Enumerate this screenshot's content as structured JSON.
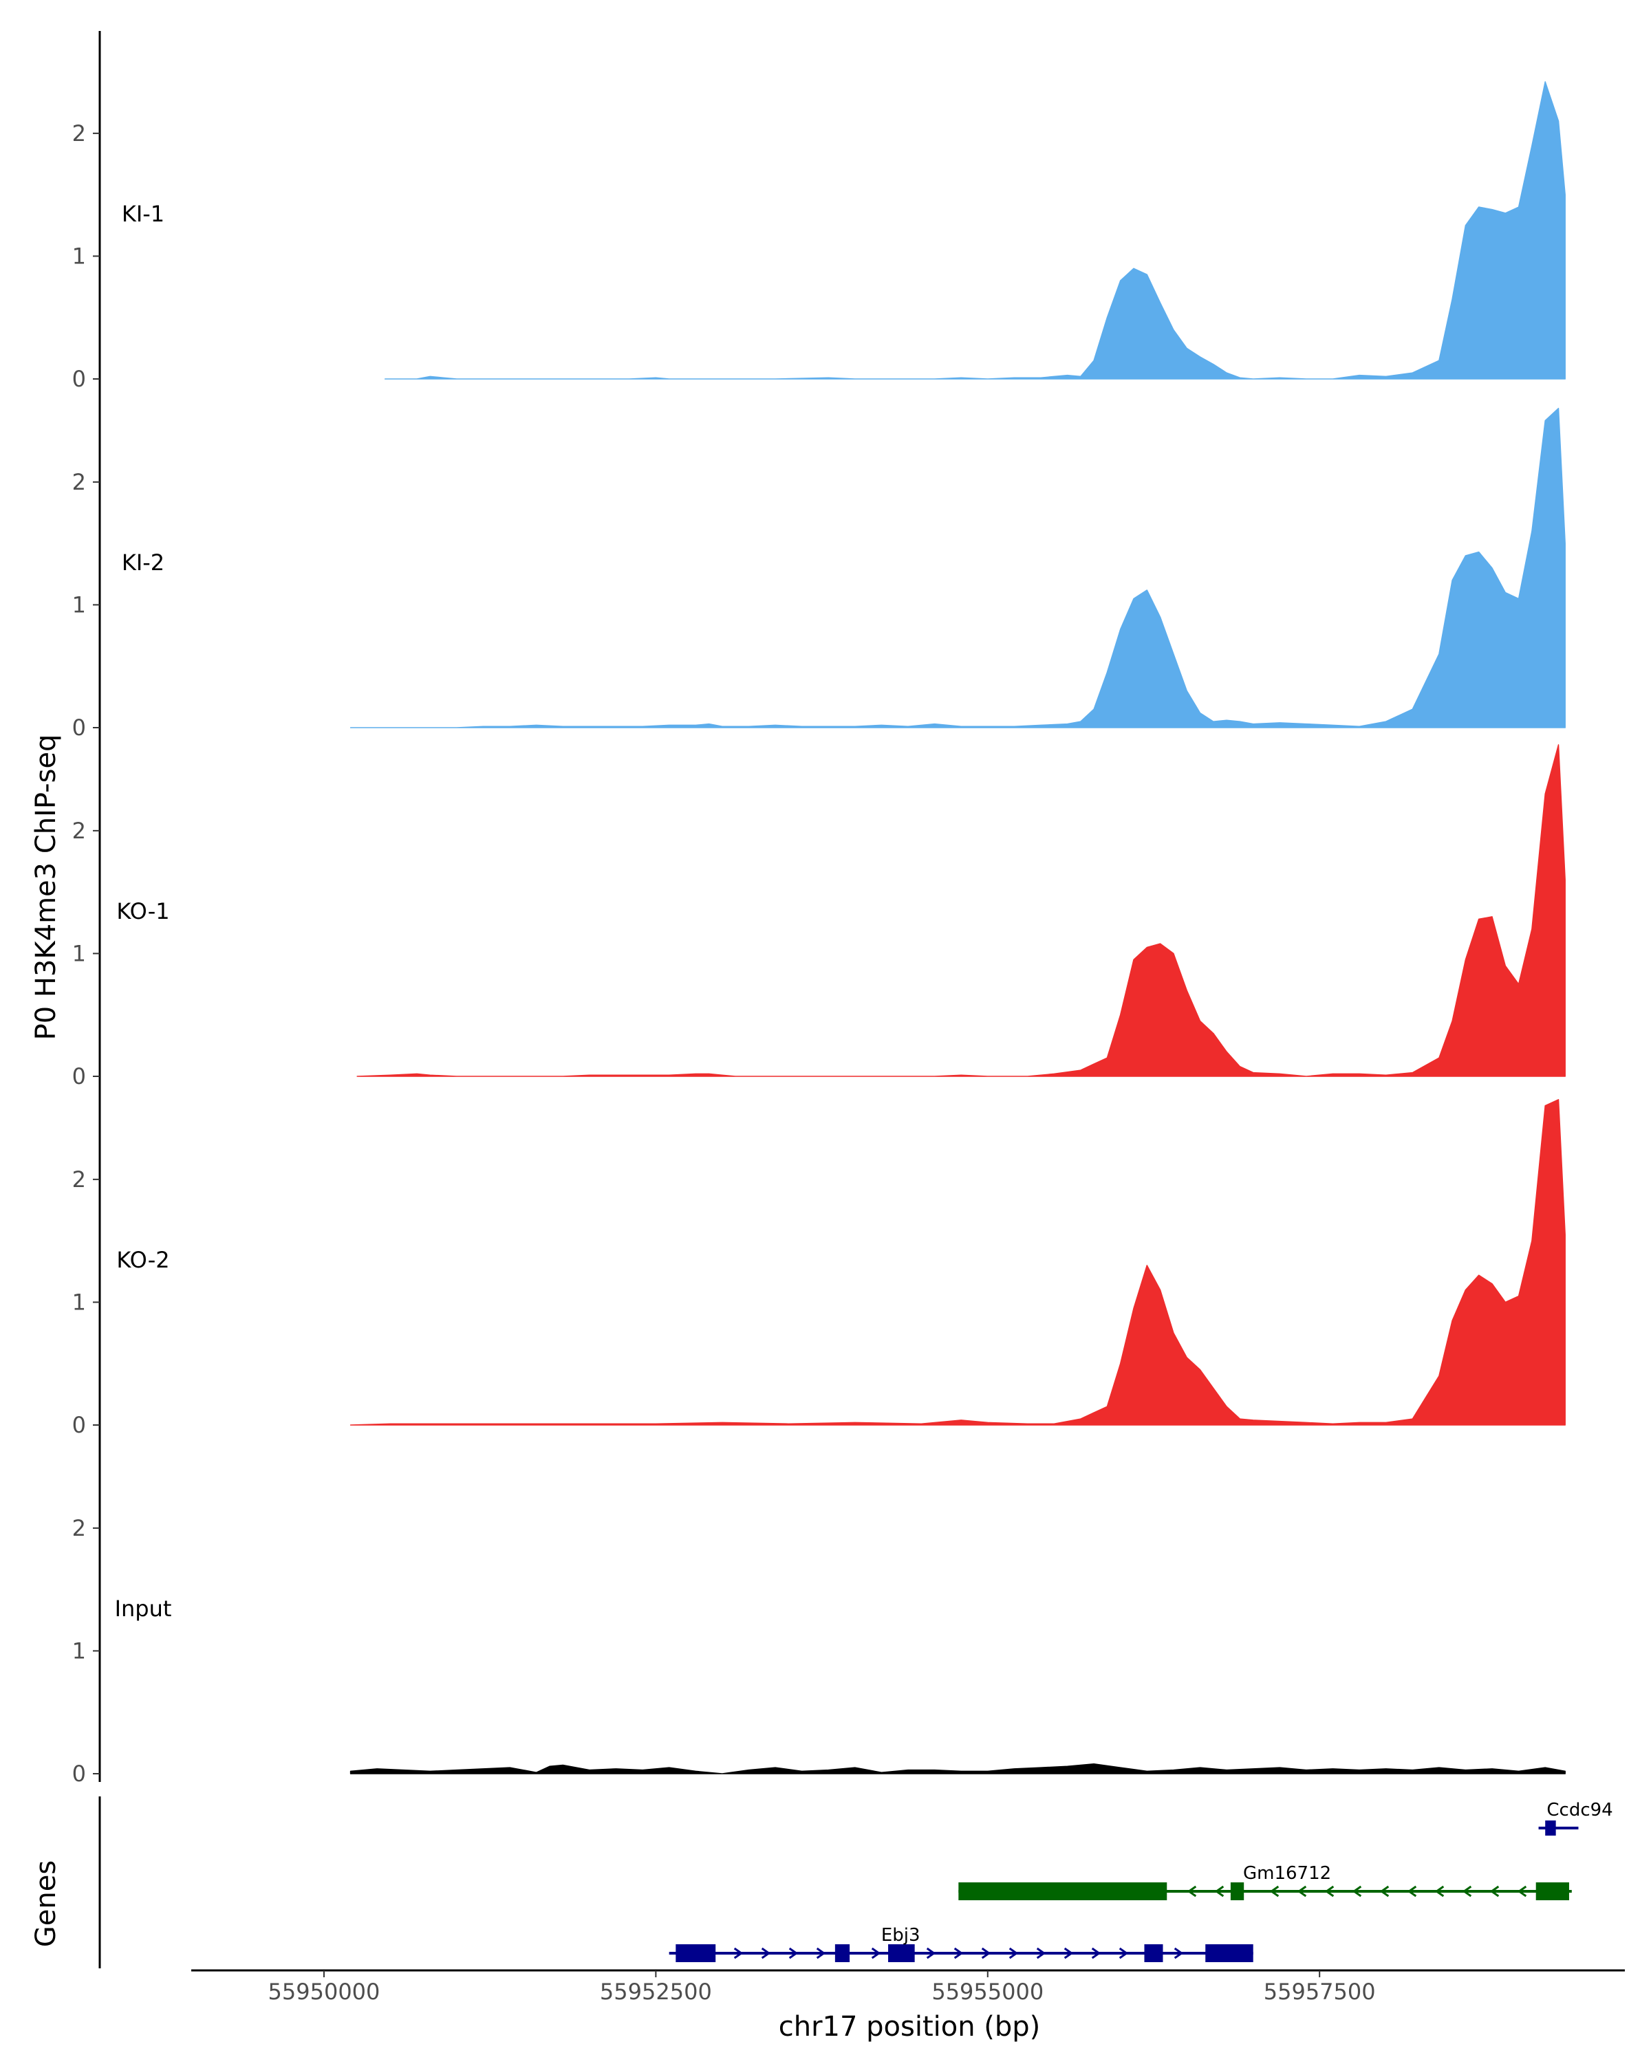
{
  "chart_data": {
    "type": "area",
    "title": "",
    "ylabel": "P0 H3K4me3 ChIP-seq",
    "xlabel": "chr17 position (bp)",
    "xlim": [
      55949000,
      55959800
    ],
    "ylim": [
      0,
      2.8
    ],
    "x_ticks": [
      {
        "value": 55950000,
        "label": "55950000"
      },
      {
        "value": 55952500,
        "label": "55952500"
      },
      {
        "value": 55955000,
        "label": "55955000"
      },
      {
        "value": 55957500,
        "label": "55957500"
      }
    ],
    "y_ticks": [
      {
        "value": 0,
        "label": "0"
      },
      {
        "value": 1,
        "label": "1"
      },
      {
        "value": 2,
        "label": "2"
      }
    ],
    "series": [
      {
        "name": "KI-1",
        "color": "#5DADEC",
        "x": [
          55950460,
          55950700,
          55950800,
          55950900,
          55951000,
          55951200,
          55951700,
          55952200,
          55952300,
          55952500,
          55952600,
          55952700,
          55952800,
          55952900,
          55953000,
          55953200,
          55953400,
          55953800,
          55954000,
          55954200,
          55954400,
          55954600,
          55954800,
          55955000,
          55955200,
          55955400,
          55955500,
          55955600,
          55955700,
          55955800,
          55955900,
          55956000,
          55956100,
          55956200,
          55956300,
          55956400,
          55956500,
          55956600,
          55956700,
          55956800,
          55956900,
          55957000,
          55957200,
          55957400,
          55957600,
          55957800,
          55958000,
          55958200,
          55958400,
          55958500,
          55958600,
          55958700,
          55958800,
          55958900,
          55959000,
          55959100,
          55959200,
          55959300,
          55959350
        ],
        "y": [
          0,
          0,
          0.02,
          0.01,
          0,
          0,
          0,
          0,
          0,
          0.01,
          0,
          0,
          0,
          0,
          0,
          0,
          0,
          0.01,
          0,
          0,
          0,
          0,
          0.01,
          0,
          0.01,
          0.01,
          0.02,
          0.03,
          0.02,
          0.15,
          0.5,
          0.8,
          0.9,
          0.85,
          0.62,
          0.4,
          0.25,
          0.18,
          0.12,
          0.05,
          0.01,
          0,
          0.01,
          0,
          0,
          0.03,
          0.02,
          0.05,
          0.15,
          0.65,
          1.25,
          1.4,
          1.38,
          1.35,
          1.4,
          1.9,
          2.42,
          2.1,
          1.5
        ]
      },
      {
        "name": "KI-2",
        "color": "#5DADEC",
        "x": [
          55950200,
          55950500,
          55950800,
          55951000,
          55951200,
          55951400,
          55951600,
          55951800,
          55952000,
          55952200,
          55952400,
          55952600,
          55952800,
          55952900,
          55953000,
          55953200,
          55953400,
          55953600,
          55953800,
          55954000,
          55954200,
          55954400,
          55954600,
          55954800,
          55955000,
          55955200,
          55955400,
          55955600,
          55955700,
          55955800,
          55955900,
          55956000,
          55956100,
          55956200,
          55956300,
          55956400,
          55956500,
          55956600,
          55956700,
          55956800,
          55956900,
          55957000,
          55957200,
          55957400,
          55957600,
          55957800,
          55958000,
          55958200,
          55958400,
          55958500,
          55958600,
          55958700,
          55958800,
          55958900,
          55959000,
          55959100,
          55959200,
          55959300,
          55959350
        ],
        "y": [
          0,
          0,
          0,
          0,
          0.01,
          0.01,
          0.02,
          0.01,
          0.01,
          0.01,
          0.01,
          0.02,
          0.02,
          0.03,
          0.01,
          0.01,
          0.02,
          0.01,
          0.01,
          0.01,
          0.02,
          0.01,
          0.03,
          0.01,
          0.01,
          0.01,
          0.02,
          0.03,
          0.05,
          0.15,
          0.45,
          0.8,
          1.05,
          1.12,
          0.9,
          0.6,
          0.3,
          0.12,
          0.05,
          0.06,
          0.05,
          0.03,
          0.04,
          0.03,
          0.02,
          0.01,
          0.05,
          0.15,
          0.6,
          1.2,
          1.4,
          1.43,
          1.3,
          1.1,
          1.05,
          1.6,
          2.5,
          2.6,
          1.5
        ]
      },
      {
        "name": "KO-1",
        "color": "#EE2C2C",
        "x": [
          55950250,
          55950500,
          55950700,
          55950800,
          55951000,
          55951800,
          55952000,
          55952200,
          55952400,
          55952600,
          55952800,
          55952900,
          55953000,
          55953100,
          55954000,
          55954600,
          55954800,
          55955000,
          55955300,
          55955500,
          55955700,
          55955800,
          55955900,
          55956000,
          55956100,
          55956200,
          55956300,
          55956400,
          55956500,
          55956600,
          55956700,
          55956800,
          55956900,
          55957000,
          55957200,
          55957400,
          55957600,
          55957800,
          55958000,
          55958200,
          55958400,
          55958500,
          55958600,
          55958700,
          55958800,
          55958900,
          55959000,
          55959100,
          55959200,
          55959300,
          55959350
        ],
        "y": [
          0,
          0.01,
          0.02,
          0.01,
          0,
          0,
          0.01,
          0.01,
          0.01,
          0.01,
          0.02,
          0.02,
          0.01,
          0,
          0,
          0,
          0.01,
          0,
          0,
          0.02,
          0.05,
          0.1,
          0.15,
          0.5,
          0.95,
          1.05,
          1.08,
          1.0,
          0.7,
          0.45,
          0.35,
          0.2,
          0.08,
          0.03,
          0.02,
          0,
          0.02,
          0.02,
          0.01,
          0.03,
          0.15,
          0.45,
          0.95,
          1.28,
          1.3,
          0.9,
          0.75,
          1.2,
          2.3,
          2.7,
          1.6
        ]
      },
      {
        "name": "KO-2",
        "color": "#EE2C2C",
        "x": [
          55950200,
          55950500,
          55951000,
          55951500,
          55952000,
          55952500,
          55953000,
          55953500,
          55954000,
          55954500,
          55954800,
          55955000,
          55955300,
          55955500,
          55955700,
          55955800,
          55955900,
          55956000,
          55956100,
          55956200,
          55956300,
          55956400,
          55956500,
          55956600,
          55956700,
          55956800,
          55956900,
          55957000,
          55957200,
          55957400,
          55957600,
          55957800,
          55958000,
          55958200,
          55958400,
          55958500,
          55958600,
          55958700,
          55958800,
          55958900,
          55959000,
          55959100,
          55959200,
          55959300,
          55959350
        ],
        "y": [
          0,
          0.01,
          0.01,
          0.01,
          0.01,
          0.01,
          0.02,
          0.01,
          0.02,
          0.01,
          0.04,
          0.02,
          0.01,
          0.01,
          0.05,
          0.1,
          0.15,
          0.5,
          0.95,
          1.3,
          1.1,
          0.75,
          0.55,
          0.45,
          0.3,
          0.15,
          0.05,
          0.04,
          0.03,
          0.02,
          0.01,
          0.02,
          0.02,
          0.05,
          0.4,
          0.85,
          1.1,
          1.22,
          1.15,
          1.0,
          1.05,
          1.5,
          2.6,
          2.65,
          1.55
        ]
      },
      {
        "name": "Input",
        "color": "#000000",
        "x": [
          55950200,
          55950400,
          55950600,
          55950800,
          55951000,
          55951200,
          55951400,
          55951600,
          55951700,
          55951800,
          55952000,
          55952200,
          55952400,
          55952600,
          55952800,
          55953000,
          55953200,
          55953400,
          55953600,
          55953800,
          55954000,
          55954200,
          55954400,
          55954600,
          55954800,
          55955000,
          55955200,
          55955400,
          55955600,
          55955700,
          55955800,
          55956000,
          55956200,
          55956400,
          55956600,
          55956800,
          55957000,
          55957200,
          55957400,
          55957600,
          55957800,
          55958000,
          55958200,
          55958400,
          55958600,
          55958800,
          55959000,
          55959200,
          55959350
        ],
        "y": [
          0.02,
          0.04,
          0.03,
          0.02,
          0.03,
          0.04,
          0.05,
          0.01,
          0.06,
          0.07,
          0.03,
          0.04,
          0.03,
          0.05,
          0.02,
          0,
          0.03,
          0.05,
          0.02,
          0.03,
          0.05,
          0.01,
          0.03,
          0.03,
          0.02,
          0.02,
          0.04,
          0.05,
          0.06,
          0.07,
          0.08,
          0.05,
          0.02,
          0.03,
          0.05,
          0.03,
          0.04,
          0.05,
          0.03,
          0.04,
          0.03,
          0.04,
          0.03,
          0.05,
          0.03,
          0.04,
          0.02,
          0.05,
          0.02
        ]
      }
    ],
    "genes": {
      "label": "Genes",
      "items": [
        {
          "name": "Ccdc94",
          "strand": "+",
          "color": "#00008B",
          "start": 55959150,
          "end": 55959450,
          "exons": [
            [
              55959200,
              55959280
            ]
          ]
        },
        {
          "name": "Gm16712",
          "strand": "-",
          "color": "#006400",
          "start": 55954780,
          "end": 55959400,
          "exons": [
            [
              55954780,
              55956350
            ],
            [
              55956830,
              55956930
            ],
            [
              55959130,
              55959380
            ]
          ]
        },
        {
          "name": "Ebj3",
          "strand": "+",
          "color": "#00008B",
          "start": 55952600,
          "end": 55957000,
          "exons": [
            [
              55952650,
              55952950
            ],
            [
              55953850,
              55953960
            ],
            [
              55954250,
              55954450
            ],
            [
              55956180,
              55956320
            ],
            [
              55956640,
              55957000
            ]
          ]
        }
      ]
    }
  }
}
